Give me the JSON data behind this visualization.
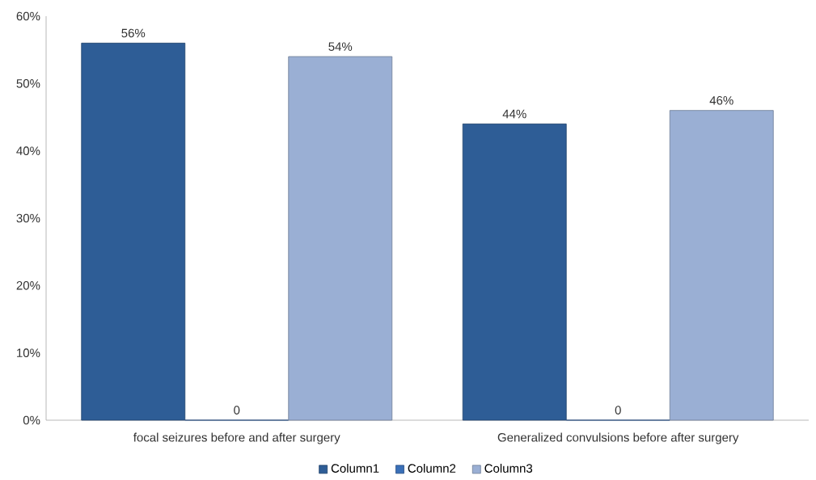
{
  "chart_data": {
    "type": "bar",
    "categories": [
      "focal seizures before and after surgery",
      "Generalized convulsions before after surgery"
    ],
    "series": [
      {
        "name": "Column1",
        "color": "#2e5d96",
        "values": [
          56,
          44
        ],
        "value_labels": [
          "56%",
          "44%"
        ]
      },
      {
        "name": "Column2",
        "color": "#3a70b8",
        "values": [
          0,
          0
        ],
        "value_labels": [
          "0",
          "0"
        ]
      },
      {
        "name": "Column3",
        "color": "#9aafd4",
        "values": [
          54,
          46
        ],
        "value_labels": [
          "54%",
          "46%"
        ]
      }
    ],
    "ylim": [
      0,
      60
    ],
    "yticks": [
      {
        "value": 0,
        "label": "0%"
      },
      {
        "value": 10,
        "label": "10%"
      },
      {
        "value": 20,
        "label": "20%"
      },
      {
        "value": 30,
        "label": "30%"
      },
      {
        "value": 40,
        "label": "40%"
      },
      {
        "value": 50,
        "label": "50%"
      },
      {
        "value": 60,
        "label": "60%"
      }
    ],
    "grid": false,
    "legend": "bottom"
  }
}
